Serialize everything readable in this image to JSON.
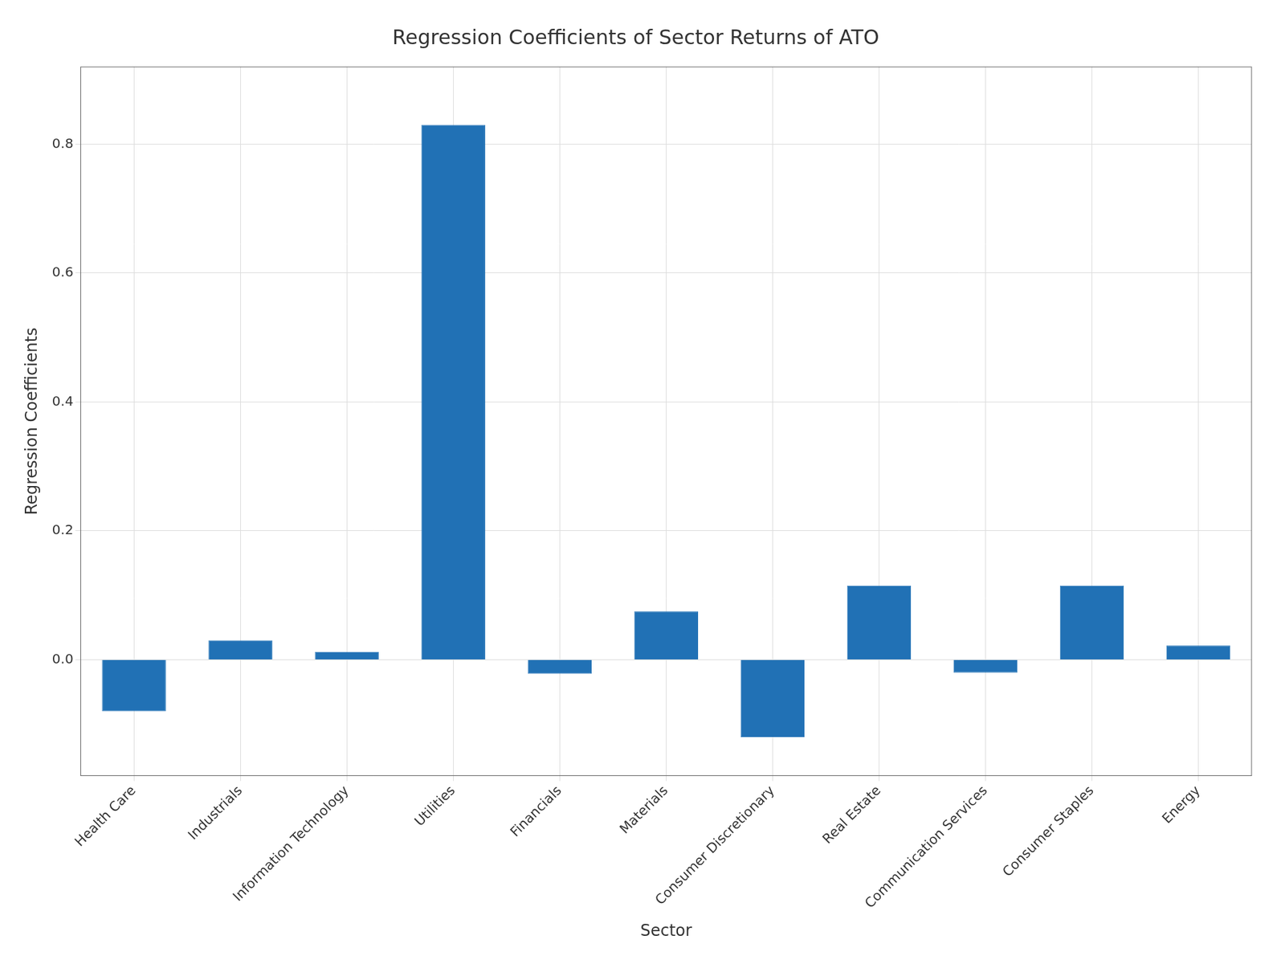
{
  "chart_data": {
    "type": "bar",
    "title": "Regression Coefficients of Sector Returns of ATO",
    "xlabel": "Sector",
    "ylabel": "Regression Coefficients",
    "categories": [
      "Health Care",
      "Industrials",
      "Information Technology",
      "Utilities",
      "Financials",
      "Materials",
      "Consumer Discretionary",
      "Real Estate",
      "Communication Services",
      "Consumer Staples",
      "Energy"
    ],
    "values": [
      -0.08,
      0.03,
      0.012,
      0.83,
      -0.022,
      0.075,
      -0.12,
      0.115,
      -0.02,
      0.115,
      0.022
    ],
    "color": "#2171b5",
    "ylim": [
      -0.18,
      0.92
    ],
    "yticks": [
      {
        "value": 0,
        "label": "0.0"
      },
      0.2,
      0.4,
      0.6,
      0.8
    ],
    "grid": true
  }
}
